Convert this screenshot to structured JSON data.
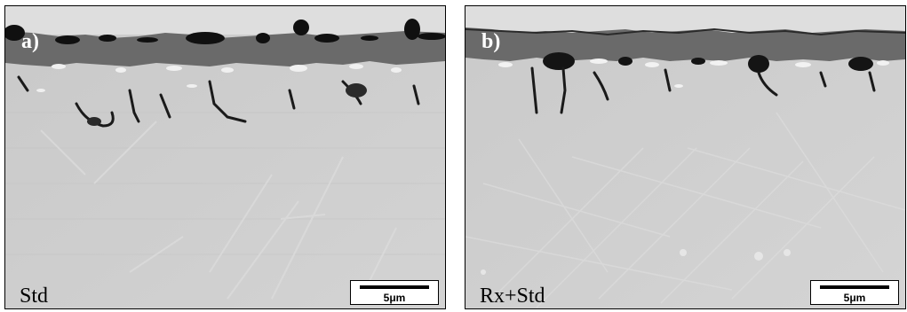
{
  "panels": [
    {
      "label": "a)",
      "sample": "Std",
      "scale_bar": "5μm"
    },
    {
      "label": "b)",
      "sample": "Rx+Std",
      "scale_bar": "5μm"
    }
  ],
  "colors": {
    "substrate": "#cfcfcf",
    "oxide_layer": "#6a6a6a",
    "top_coating": "#dedede",
    "voids": "#101010",
    "label_text": "#ffffff"
  }
}
